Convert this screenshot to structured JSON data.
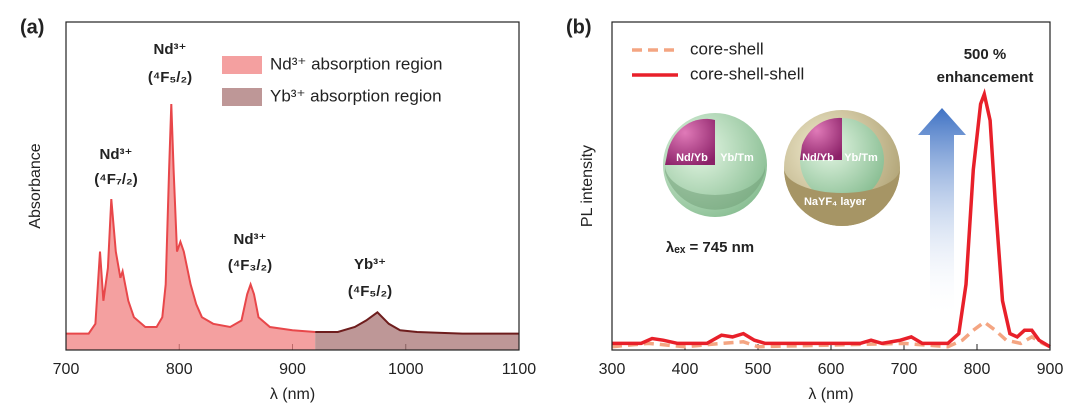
{
  "chart_data": [
    {
      "type": "area",
      "label": "(a)",
      "xlabel": "λ (nm)",
      "ylabel": "Absorbance",
      "xlim": [
        700,
        1100
      ],
      "xticks": [
        700,
        800,
        900,
        1000,
        1100
      ],
      "ylim": [
        0,
        1
      ],
      "series": [
        {
          "name": "Nd³⁺ absorption region",
          "color": "#f08080",
          "line_color": "#e8474a",
          "x": [
            700,
            720,
            726,
            730,
            733,
            737,
            740,
            744,
            748,
            750,
            755,
            760,
            770,
            780,
            785,
            788,
            791,
            793,
            795,
            798,
            801,
            804,
            810,
            815,
            820,
            830,
            845,
            855,
            860,
            863,
            866,
            870,
            880,
            900,
            920
          ],
          "values": [
            0.05,
            0.05,
            0.08,
            0.3,
            0.15,
            0.25,
            0.46,
            0.3,
            0.22,
            0.24,
            0.15,
            0.1,
            0.07,
            0.07,
            0.1,
            0.2,
            0.55,
            0.75,
            0.55,
            0.3,
            0.33,
            0.3,
            0.2,
            0.14,
            0.1,
            0.08,
            0.07,
            0.09,
            0.17,
            0.2,
            0.17,
            0.1,
            0.07,
            0.06,
            0.055
          ]
        },
        {
          "name": "Yb³⁺ absorption region",
          "color": "#a87474",
          "line_color": "#6e1d1d",
          "x": [
            920,
            940,
            955,
            965,
            975,
            985,
            995,
            1010,
            1050,
            1100
          ],
          "values": [
            0.055,
            0.055,
            0.07,
            0.09,
            0.115,
            0.08,
            0.06,
            0.055,
            0.05,
            0.05
          ]
        }
      ],
      "annotations": [
        "Nd³⁺",
        "(⁴F₇/₂)",
        "Nd³⁺",
        "(⁴F₅/₂)",
        "Nd³⁺",
        "(⁴F₃/₂)",
        "Yb³⁺",
        "(⁴F₅/₂)"
      ]
    },
    {
      "type": "line",
      "label": "(b)",
      "xlabel": "λ (nm)",
      "ylabel": "PL intensity",
      "xlim": [
        300,
        900
      ],
      "xticks": [
        300,
        400,
        500,
        600,
        700,
        800,
        900
      ],
      "ylim": [
        0,
        1
      ],
      "series": [
        {
          "name": "core-shell",
          "color": "#f4a582",
          "linestyle": "dashed",
          "x": [
            300,
            350,
            400,
            450,
            480,
            500,
            700,
            760,
            780,
            795,
            810,
            825,
            840,
            860,
            875,
            890,
            900
          ],
          "values": [
            0.01,
            0.02,
            0.01,
            0.02,
            0.025,
            0.01,
            0.02,
            0.01,
            0.03,
            0.06,
            0.085,
            0.06,
            0.03,
            0.02,
            0.04,
            0.02,
            0.01
          ]
        },
        {
          "name": "core-shell-shell",
          "color": "#e8202a",
          "linestyle": "solid",
          "x": [
            300,
            340,
            355,
            370,
            390,
            430,
            450,
            465,
            480,
            495,
            510,
            640,
            655,
            670,
            695,
            710,
            725,
            760,
            775,
            785,
            795,
            805,
            810,
            818,
            825,
            835,
            845,
            855,
            865,
            875,
            885,
            900
          ],
          "values": [
            0.02,
            0.02,
            0.035,
            0.03,
            0.02,
            0.02,
            0.045,
            0.04,
            0.05,
            0.03,
            0.02,
            0.02,
            0.03,
            0.02,
            0.03,
            0.04,
            0.02,
            0.02,
            0.05,
            0.2,
            0.55,
            0.75,
            0.78,
            0.7,
            0.45,
            0.15,
            0.05,
            0.04,
            0.06,
            0.06,
            0.03,
            0.01
          ]
        }
      ],
      "annotations": [
        "500 %",
        "enhancement",
        "λₑₓ = 745 nm",
        "Nd/Yb",
        "Yb/Tm",
        "Nd/Yb",
        "Yb/Tm",
        "NaYF₄ layer"
      ]
    }
  ]
}
